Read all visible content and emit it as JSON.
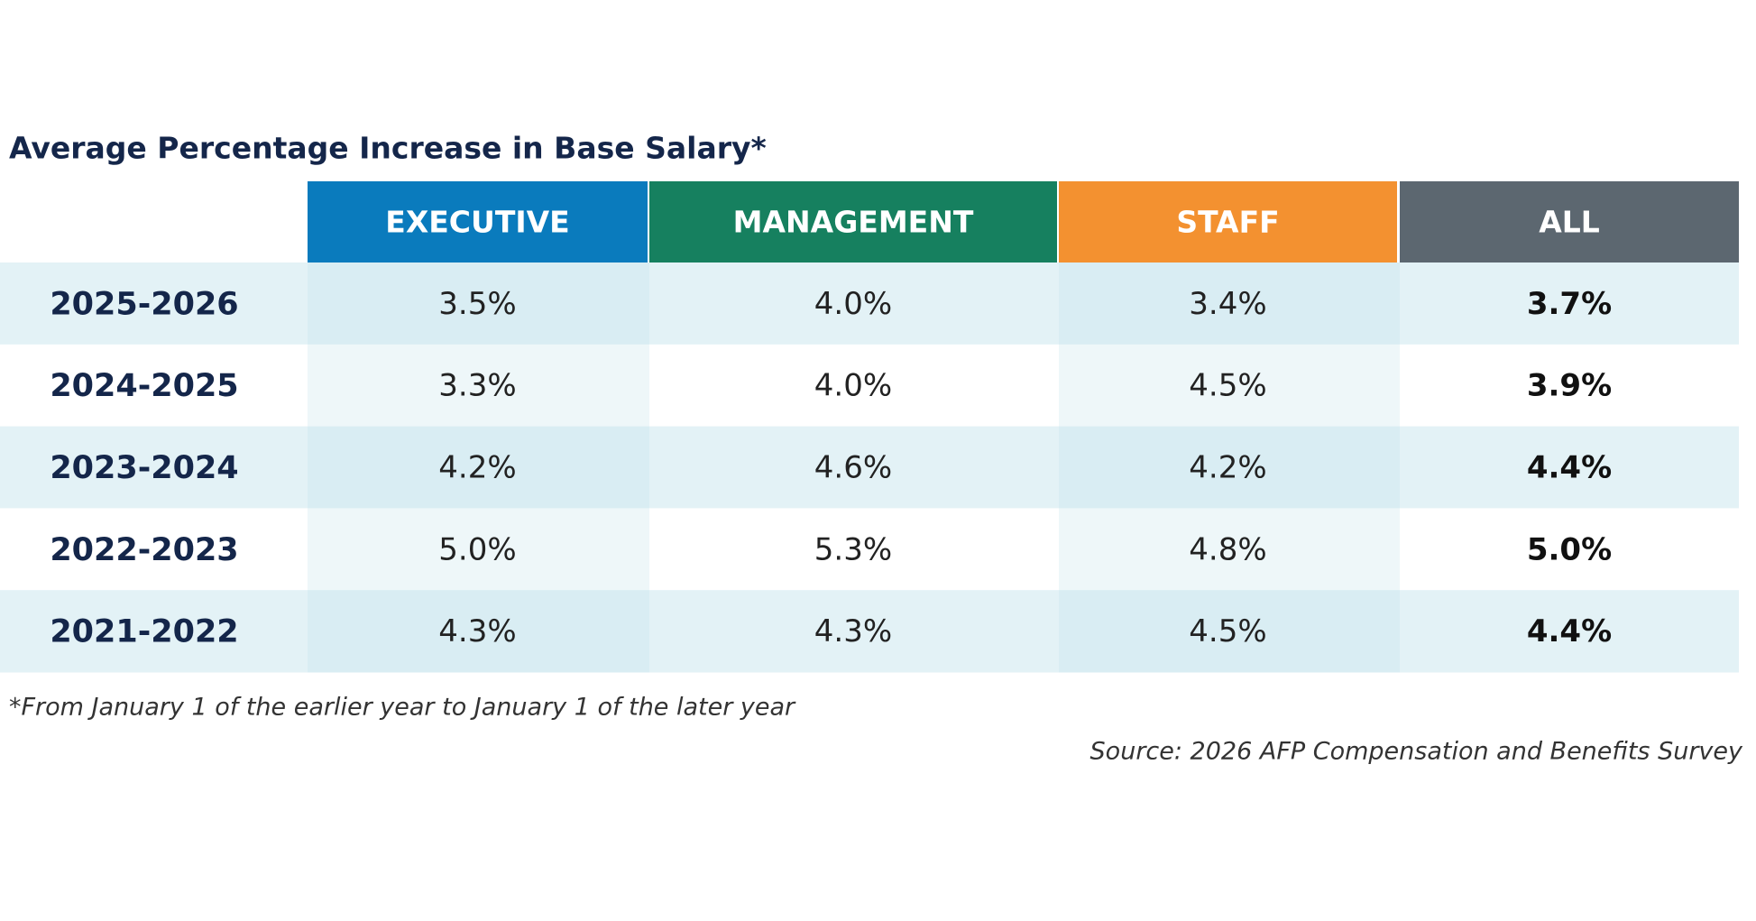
{
  "title": "Average Percentage Increase in Base Salary*",
  "table": {
    "columns": [
      "EXECUTIVE",
      "MANAGEMENT",
      "STAFF",
      "ALL"
    ],
    "rows": [
      [
        "2025-2026",
        "3.5%",
        "4.0%",
        "3.4%",
        "3.7%"
      ],
      [
        "2024-2025",
        "3.3%",
        "4.0%",
        "4.5%",
        "3.9%"
      ],
      [
        "2023-2024",
        "4.2%",
        "4.6%",
        "4.2%",
        "4.4%"
      ],
      [
        "2022-2023",
        "5.0%",
        "5.3%",
        "4.8%",
        "5.0%"
      ],
      [
        "2021-2022",
        "4.3%",
        "4.3%",
        "4.5%",
        "4.4%"
      ]
    ]
  },
  "footnote": "*From January 1 of the earlier year to January 1 of the later year",
  "source": "Source: 2026 AFP Compensation and Benefits Survey"
}
